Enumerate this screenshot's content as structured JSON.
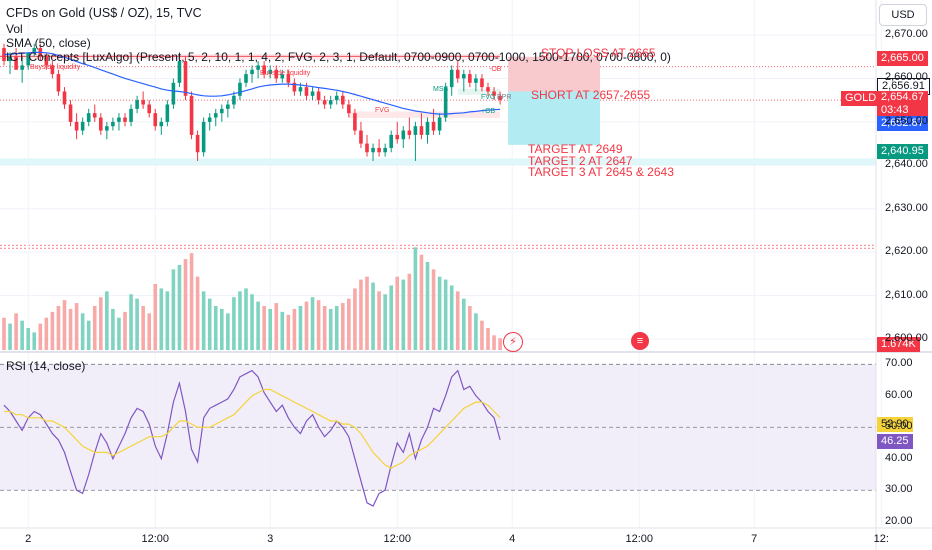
{
  "header": {
    "symbol_title": "CFDs on Gold (US$ / OZ), 15, TVC",
    "volume_label": "Vol",
    "sma_label": "SMA (50, close)",
    "ict_label": "ICT Concepts [LuxAlgo] (Present, 5, 2, 10, 1, 1, 4, 2, FVG, 2, 3, 1, Default, 0700-0900, 0700-1000, 1500-1700, 0700-0800, 0)",
    "currency_button": "USD"
  },
  "rsi_panel": {
    "label": "RSI (14, close)"
  },
  "annotations": {
    "stop_loss": "STOP LOSS AT 2665",
    "short": "SHORT AT 2657-2655",
    "target1": "TARGET AT 2649",
    "target2": "TARGET 2 AT 2647",
    "target3": "TARGET 3 AT 2645 & 2643",
    "buyside_liquidity_1": "Buyside liquidity",
    "buyside_liquidity_2": "Buyside liquidity",
    "minus_ob": "-OB",
    "fvg": "FVG",
    "mss": "MSS",
    "fvg_right": "FVG",
    "plus_ob": "+OB",
    "bpr": "BPR"
  },
  "price_tags": {
    "stop": "2,665.00",
    "bid": "2,656.91",
    "current": "2,654.67",
    "countdown": "03:43",
    "sma_value": "2,652.87",
    "low_level": "2,640.95",
    "symbol": "GOLD",
    "volume_value": "1.674K"
  },
  "rsi_tags": {
    "rsi_value": "46.25",
    "rsi_ma": "52.90"
  },
  "colors": {
    "up": "#089981",
    "down": "#f23645",
    "sma": "#2962ff",
    "rsi": "#7e57c2",
    "rsi_ma": "#f5d33b",
    "tp_zone": "#b2ebf2",
    "sl_zone": "#f8c9cd",
    "bid_tag": "#ffffff"
  },
  "chart_data": {
    "type": "candlestick",
    "price_axis": {
      "ticks": [
        "2,670.00",
        "2,660.00",
        "2,650.00",
        "2,640.00",
        "2,630.00",
        "2,620.00",
        "2,610.00",
        "2,600.00"
      ],
      "range": [
        2597,
        2673
      ]
    },
    "rsi_axis": {
      "ticks": [
        "70.00",
        "60.00",
        "50.00",
        "40.00",
        "30.00",
        "20.00"
      ],
      "range": [
        18,
        72
      ],
      "bands": [
        30,
        70
      ],
      "mid": 50
    },
    "x_ticks": [
      {
        "label": "2",
        "i": 4
      },
      {
        "label": "12:00",
        "i": 25
      },
      {
        "label": "3",
        "i": 44
      },
      {
        "label": "12:00",
        "i": 65
      },
      {
        "label": "4",
        "i": 84
      },
      {
        "label": "12:00",
        "i": 105
      },
      {
        "label": "7",
        "i": 124
      },
      {
        "label": "12:",
        "i": 145
      }
    ],
    "candles": [
      [
        2667,
        2668,
        2663,
        2664
      ],
      [
        2664,
        2666,
        2661,
        2665
      ],
      [
        2665,
        2667,
        2662,
        2662
      ],
      [
        2662,
        2665,
        2659,
        2663
      ],
      [
        2663,
        2666,
        2662,
        2666
      ],
      [
        2666,
        2668,
        2665,
        2667
      ],
      [
        2667,
        2668,
        2664,
        2665
      ],
      [
        2665,
        2666,
        2662,
        2663
      ],
      [
        2663,
        2664,
        2660,
        2661
      ],
      [
        2661,
        2662,
        2656,
        2657
      ],
      [
        2657,
        2658,
        2653,
        2654
      ],
      [
        2654,
        2655,
        2649,
        2650
      ],
      [
        2650,
        2652,
        2646,
        2648
      ],
      [
        2648,
        2651,
        2647,
        2650
      ],
      [
        2650,
        2653,
        2649,
        2652
      ],
      [
        2652,
        2654,
        2650,
        2651
      ],
      [
        2651,
        2652,
        2647,
        2648
      ],
      [
        2648,
        2650,
        2646,
        2649
      ],
      [
        2649,
        2651,
        2648,
        2650
      ],
      [
        2650,
        2652,
        2648,
        2651
      ],
      [
        2651,
        2652,
        2649,
        2650
      ],
      [
        2650,
        2654,
        2649,
        2653
      ],
      [
        2653,
        2656,
        2652,
        2655
      ],
      [
        2655,
        2657,
        2653,
        2654
      ],
      [
        2654,
        2655,
        2651,
        2652
      ],
      [
        2652,
        2653,
        2648,
        2649
      ],
      [
        2649,
        2651,
        2647,
        2650
      ],
      [
        2650,
        2655,
        2649,
        2654
      ],
      [
        2654,
        2660,
        2653,
        2659
      ],
      [
        2659,
        2666,
        2658,
        2664
      ],
      [
        2664,
        2665,
        2655,
        2656
      ],
      [
        2656,
        2657,
        2646,
        2647
      ],
      [
        2647,
        2648,
        2641,
        2643
      ],
      [
        2643,
        2651,
        2642,
        2650
      ],
      [
        2650,
        2652,
        2648,
        2651
      ],
      [
        2651,
        2653,
        2649,
        2652
      ],
      [
        2652,
        2654,
        2650,
        2653
      ],
      [
        2653,
        2655,
        2651,
        2654
      ],
      [
        2654,
        2657,
        2653,
        2656
      ],
      [
        2656,
        2660,
        2655,
        2659
      ],
      [
        2659,
        2662,
        2658,
        2661
      ],
      [
        2661,
        2663,
        2659,
        2662
      ],
      [
        2662,
        2664,
        2660,
        2663
      ],
      [
        2663,
        2664,
        2660,
        2661
      ],
      [
        2661,
        2663,
        2660,
        2662
      ],
      [
        2662,
        2663,
        2659,
        2660
      ],
      [
        2660,
        2662,
        2659,
        2661
      ],
      [
        2661,
        2662,
        2658,
        2659
      ],
      [
        2659,
        2660,
        2656,
        2657
      ],
      [
        2657,
        2659,
        2656,
        2658
      ],
      [
        2658,
        2659,
        2655,
        2656
      ],
      [
        2656,
        2658,
        2655,
        2657
      ],
      [
        2657,
        2658,
        2654,
        2655
      ],
      [
        2655,
        2656,
        2653,
        2654
      ],
      [
        2654,
        2656,
        2653,
        2655
      ],
      [
        2655,
        2657,
        2654,
        2656
      ],
      [
        2656,
        2657,
        2653,
        2654
      ],
      [
        2654,
        2655,
        2651,
        2652
      ],
      [
        2652,
        2653,
        2647,
        2648
      ],
      [
        2648,
        2650,
        2644,
        2645
      ],
      [
        2645,
        2647,
        2642,
        2643
      ],
      [
        2643,
        2645,
        2641,
        2644
      ],
      [
        2644,
        2646,
        2642,
        2643
      ],
      [
        2643,
        2645,
        2642,
        2644
      ],
      [
        2644,
        2648,
        2643,
        2647
      ],
      [
        2647,
        2650,
        2645,
        2646
      ],
      [
        2646,
        2649,
        2644,
        2648
      ],
      [
        2648,
        2651,
        2646,
        2647
      ],
      [
        2647,
        2650,
        2641,
        2649
      ],
      [
        2649,
        2652,
        2646,
        2647
      ],
      [
        2647,
        2651,
        2645,
        2650
      ],
      [
        2650,
        2653,
        2647,
        2648
      ],
      [
        2648,
        2652,
        2647,
        2651
      ],
      [
        2651,
        2659,
        2650,
        2658
      ],
      [
        2658,
        2663,
        2656,
        2662
      ],
      [
        2662,
        2664,
        2659,
        2660
      ],
      [
        2660,
        2662,
        2657,
        2661
      ],
      [
        2661,
        2662,
        2658,
        2659
      ],
      [
        2659,
        2661,
        2657,
        2660
      ],
      [
        2660,
        2661,
        2657,
        2658
      ],
      [
        2658,
        2659,
        2656,
        2657
      ],
      [
        2657,
        2658,
        2655,
        2656
      ],
      [
        2656,
        2657,
        2654,
        2655
      ]
    ],
    "sma": [
      2665.5,
      2665.6,
      2665.7,
      2665.8,
      2665.9,
      2666.0,
      2666.0,
      2665.9,
      2665.7,
      2665.3,
      2664.9,
      2664.4,
      2663.9,
      2663.4,
      2663.0,
      2662.5,
      2662.0,
      2661.5,
      2661.0,
      2660.5,
      2660.0,
      2659.6,
      2659.2,
      2658.8,
      2658.4,
      2658.0,
      2657.6,
      2657.3,
      2657.1,
      2657.0,
      2656.8,
      2656.5,
      2656.2,
      2656.0,
      2655.9,
      2655.9,
      2656.0,
      2656.2,
      2656.5,
      2656.8,
      2657.2,
      2657.6,
      2658.0,
      2658.3,
      2658.5,
      2658.6,
      2658.7,
      2658.7,
      2658.6,
      2658.5,
      2658.3,
      2658.1,
      2657.9,
      2657.7,
      2657.5,
      2657.3,
      2657.0,
      2656.7,
      2656.3,
      2655.9,
      2655.5,
      2655.1,
      2654.7,
      2654.3,
      2653.9,
      2653.5,
      2653.1,
      2652.8,
      2652.5,
      2652.3,
      2652.1,
      2651.9,
      2651.8,
      2651.8,
      2651.9,
      2652.0,
      2652.1,
      2652.3,
      2652.4,
      2652.6,
      2652.7,
      2652.8,
      2652.87
    ],
    "volume": [
      22,
      18,
      25,
      20,
      15,
      12,
      18,
      22,
      26,
      30,
      34,
      28,
      32,
      25,
      20,
      30,
      36,
      40,
      28,
      22,
      26,
      38,
      35,
      30,
      25,
      45,
      42,
      40,
      55,
      58,
      62,
      66,
      50,
      40,
      35,
      30,
      28,
      25,
      36,
      40,
      42,
      38,
      33,
      30,
      28,
      32,
      26,
      24,
      28,
      30,
      33,
      36,
      34,
      30,
      28,
      30,
      32,
      35,
      42,
      48,
      50,
      46,
      40,
      38,
      44,
      50,
      48,
      52,
      70,
      65,
      60,
      55,
      50,
      48,
      44,
      40,
      35,
      30,
      25,
      20,
      15,
      10,
      8
    ],
    "volume_max": 75,
    "rsi": [
      57,
      55,
      52,
      49,
      53,
      55,
      54,
      51,
      48,
      46,
      42,
      36,
      30,
      29,
      35,
      42,
      48,
      45,
      40,
      44,
      48,
      53,
      56,
      55,
      51,
      44,
      40,
      48,
      58,
      64,
      55,
      43,
      39,
      53,
      56,
      57,
      58,
      59,
      62,
      66,
      67,
      68,
      66,
      61,
      58,
      55,
      57,
      53,
      50,
      48,
      52,
      54,
      50,
      47,
      49,
      52,
      50,
      47,
      40,
      33,
      26,
      25,
      29,
      30,
      38,
      45,
      42,
      48,
      40,
      46,
      50,
      56,
      55,
      60,
      66,
      68,
      62,
      63,
      60,
      58,
      55,
      53,
      46
    ],
    "rsi_ma": [
      55,
      55,
      54,
      54,
      53,
      53,
      53,
      52,
      52,
      51,
      50,
      48,
      46,
      44,
      43,
      42,
      42,
      42,
      41,
      42,
      43,
      44,
      45,
      46,
      47,
      47,
      47,
      48,
      50,
      52,
      52,
      51,
      50,
      50,
      50,
      51,
      52,
      53,
      54,
      56,
      58,
      60,
      61,
      62,
      62,
      61,
      60,
      59,
      58,
      57,
      56,
      55,
      54,
      53,
      52,
      52,
      51,
      51,
      50,
      48,
      45,
      42,
      40,
      38,
      37,
      38,
      39,
      41,
      42,
      43,
      44,
      46,
      48,
      50,
      52,
      54,
      56,
      57,
      58,
      58,
      57,
      55,
      53
    ],
    "levels": {
      "stop": 2665,
      "short_top": 2657,
      "short_bottom": 2655,
      "target1": 2649,
      "target2": 2647,
      "target3": 2643
    }
  }
}
